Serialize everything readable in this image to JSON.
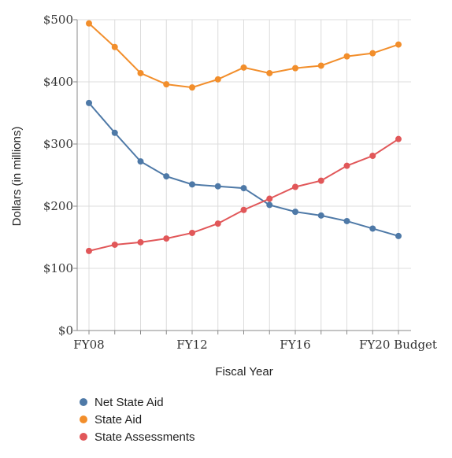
{
  "chart_data": {
    "type": "line",
    "xlabel": "Fiscal Year",
    "ylabel": "Dollars (in millions)",
    "ylim": [
      0,
      500
    ],
    "y_ticks": [
      0,
      100,
      200,
      300,
      400,
      500
    ],
    "y_tick_labels": [
      "$0",
      "$100",
      "$200",
      "$300",
      "$400",
      "$500"
    ],
    "x": [
      "FY08",
      "FY09",
      "FY10",
      "FY11",
      "FY12",
      "FY13",
      "FY14",
      "FY15",
      "FY16",
      "FY17",
      "FY18",
      "FY19",
      "FY20 Budget"
    ],
    "x_tick_labels": [
      {
        "index": 0,
        "label": "FY08"
      },
      {
        "index": 4,
        "label": "FY12"
      },
      {
        "index": 8,
        "label": "FY16"
      },
      {
        "index": 12,
        "label": "FY20 Budget"
      }
    ],
    "grid": true,
    "legend_position": "bottom-left",
    "series": [
      {
        "name": "Net State Aid",
        "color": "#4e79a7",
        "values": [
          366,
          318,
          272,
          248,
          235,
          232,
          229,
          202,
          191,
          185,
          176,
          164,
          152
        ]
      },
      {
        "name": "State Aid",
        "color": "#f28e2b",
        "values": [
          494,
          456,
          414,
          396,
          391,
          404,
          423,
          414,
          422,
          426,
          441,
          446,
          460
        ]
      },
      {
        "name": "State Assessments",
        "color": "#e15759",
        "values": [
          128,
          138,
          142,
          148,
          157,
          172,
          194,
          212,
          231,
          241,
          265,
          281,
          308
        ]
      }
    ]
  }
}
